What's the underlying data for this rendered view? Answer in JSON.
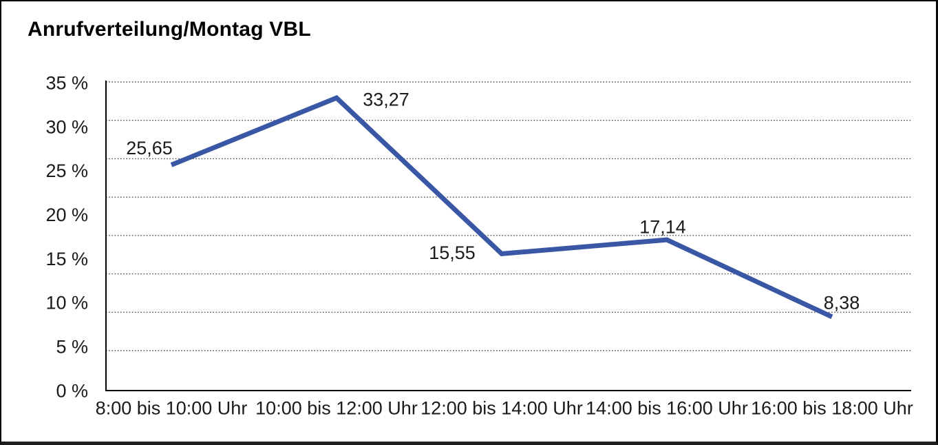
{
  "chart_data": {
    "type": "line",
    "title": "Anrufverteilung/Montag VBL",
    "categories": [
      "8:00 bis 10:00 Uhr",
      "10:00 bis 12:00 Uhr",
      "12:00 bis 14:00 Uhr",
      "14:00 bis 16:00 Uhr",
      "16:00 bis 18:00 Uhr"
    ],
    "values": [
      25.65,
      33.27,
      15.55,
      17.14,
      8.38
    ],
    "value_labels": [
      "25,65",
      "33,27",
      "15,55",
      "17,14",
      "8,38"
    ],
    "y_ticks": [
      "35 %",
      "30 %",
      "25 %",
      "20 %",
      "15 %",
      "10 %",
      "5 %",
      "0 %"
    ],
    "ylim": [
      0,
      35
    ],
    "xlabel": "",
    "ylabel": "",
    "unit": "%",
    "line_color": "#3A57A5",
    "axis_color": "#000000",
    "gridline_color": "#4d4d4d",
    "grid": "dotted-horizontal",
    "legend": "none"
  }
}
